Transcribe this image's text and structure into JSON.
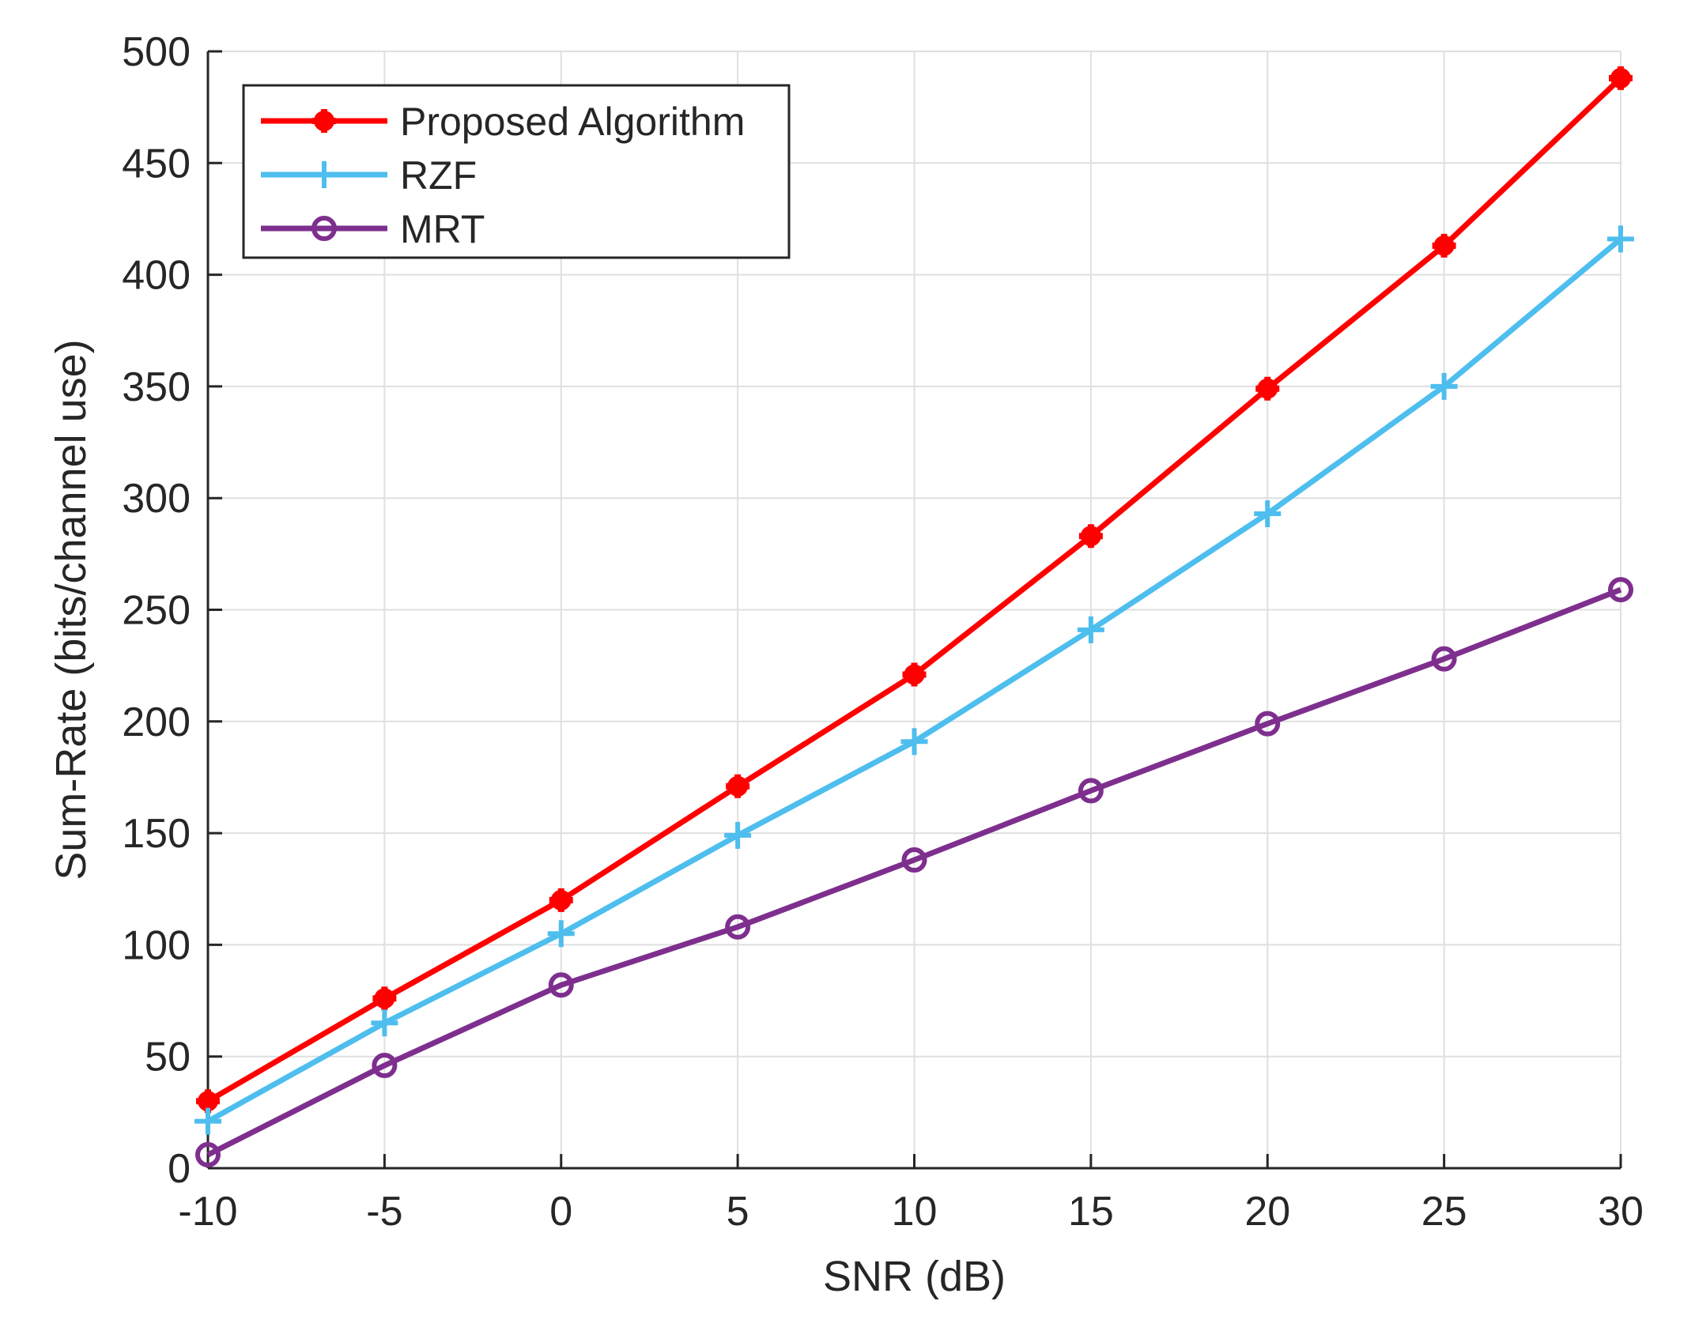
{
  "chart_data": {
    "type": "line",
    "title": "",
    "xlabel": "SNR (dB)",
    "ylabel": "Sum-Rate (bits/channel use)",
    "x": [
      -10,
      -5,
      0,
      5,
      10,
      15,
      20,
      25,
      30
    ],
    "xlim": [
      -10,
      30
    ],
    "ylim": [
      0,
      500
    ],
    "xticks": [
      -10,
      -5,
      0,
      5,
      10,
      15,
      20,
      25,
      30
    ],
    "xtick_labels": [
      "-10",
      "-5",
      "0",
      "5",
      "10",
      "15",
      "20",
      "25",
      "30"
    ],
    "yticks": [
      0,
      50,
      100,
      150,
      200,
      250,
      300,
      350,
      400,
      450,
      500
    ],
    "ytick_labels": [
      "0",
      "50",
      "100",
      "150",
      "200",
      "250",
      "300",
      "350",
      "400",
      "450",
      "500"
    ],
    "grid": true,
    "legend_position": "top-left",
    "series": [
      {
        "name": "Proposed Algorithm",
        "color": "#ff0000",
        "marker": "filled-plus",
        "values": [
          30,
          76,
          120,
          171,
          221,
          283,
          349,
          413,
          488
        ]
      },
      {
        "name": "RZF",
        "color": "#4dbeee",
        "marker": "plus",
        "values": [
          21,
          65,
          105,
          149,
          191,
          241,
          293,
          350,
          416
        ]
      },
      {
        "name": "MRT",
        "color": "#7e2f8e",
        "marker": "circle",
        "values": [
          6,
          46,
          82,
          108,
          138,
          169,
          199,
          228,
          259
        ]
      }
    ]
  }
}
